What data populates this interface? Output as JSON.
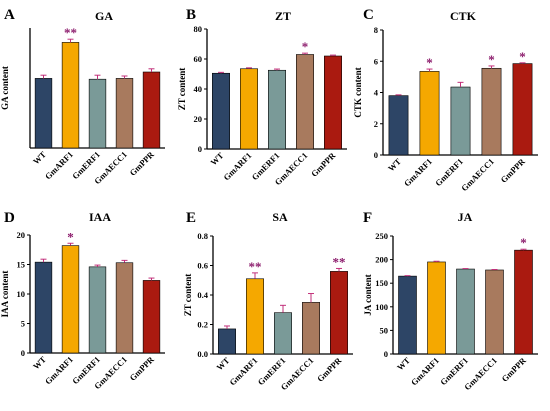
{
  "colors": {
    "bars": [
      "#2d4566",
      "#f5a800",
      "#7a9a98",
      "#a87a5e",
      "#aa1a10"
    ],
    "sig_mark": "#8b1a6b",
    "error_bar": "#c2307a"
  },
  "chart_data": [
    {
      "type": "bar",
      "letter": "A",
      "title": "GA",
      "ylabel": "GA content",
      "categories": [
        "WT",
        "GmARF1",
        "GmERF1",
        "GmAECC1",
        "GmPPR"
      ],
      "values": [
        8.7,
        13.2,
        8.6,
        8.7,
        9.5
      ],
      "errors": [
        0.4,
        0.4,
        0.5,
        0.3,
        0.4
      ],
      "significance": [
        "",
        "**",
        "",
        "",
        ""
      ],
      "ylim": [
        0,
        15
      ],
      "yticks": [],
      "yticks_labeled": false
    },
    {
      "type": "bar",
      "letter": "B",
      "title": "ZT",
      "ylabel": "ZT content",
      "categories": [
        "WT",
        "GmARF1",
        "GmERF1",
        "GmAECC1",
        "GmPPR"
      ],
      "values": [
        50.5,
        53.5,
        52.5,
        63.0,
        62.0
      ],
      "errors": [
        0.6,
        0.6,
        0.8,
        0.9,
        0.6
      ],
      "significance": [
        "",
        "",
        "",
        "*",
        ""
      ],
      "ylim": [
        0,
        80
      ],
      "yticks": [
        0,
        20,
        40,
        60,
        80
      ],
      "yticks_labeled": true
    },
    {
      "type": "bar",
      "letter": "C",
      "title": "CTK",
      "ylabel": "CTK content",
      "categories": [
        "WT",
        "GmARF1",
        "GmERF1",
        "GmAECC1",
        "GmPPR"
      ],
      "values": [
        3.8,
        5.35,
        4.35,
        5.55,
        5.85
      ],
      "errors": [
        0.05,
        0.15,
        0.3,
        0.15,
        0.05
      ],
      "significance": [
        "",
        "*",
        "",
        "*",
        "*"
      ],
      "ylim": [
        0,
        8
      ],
      "yticks": [
        0,
        2,
        4,
        6,
        8
      ],
      "yticks_labeled": true
    },
    {
      "type": "bar",
      "letter": "D",
      "title": "IAA",
      "ylabel": "IAA content",
      "categories": [
        "WT",
        "GmARF1",
        "GmERF1",
        "GmAECC1",
        "GmPPR"
      ],
      "values": [
        15.4,
        18.2,
        14.6,
        15.3,
        12.3
      ],
      "errors": [
        0.5,
        0.4,
        0.3,
        0.4,
        0.4
      ],
      "significance": [
        "",
        "*",
        "",
        "",
        ""
      ],
      "ylim": [
        0,
        20
      ],
      "yticks": [
        0,
        5,
        10,
        15,
        20
      ],
      "yticks_labeled": true
    },
    {
      "type": "bar",
      "letter": "E",
      "title": "SA",
      "ylabel": "ZT content",
      "categories": [
        "WT",
        "GmARF1",
        "GmERF1",
        "GmAECC1",
        "GmPPR"
      ],
      "values": [
        0.17,
        0.51,
        0.28,
        0.35,
        0.56
      ],
      "errors": [
        0.02,
        0.04,
        0.05,
        0.06,
        0.02
      ],
      "significance": [
        "",
        "**",
        "",
        "",
        "**"
      ],
      "ylim": [
        0,
        0.8
      ],
      "yticks": [
        0.0,
        0.2,
        0.4,
        0.6,
        0.8
      ],
      "yticks_labeled": true
    },
    {
      "type": "bar",
      "letter": "F",
      "title": "JA",
      "ylabel": "JA content",
      "categories": [
        "WT",
        "GmARF1",
        "GmERF1",
        "GmAECC1",
        "GmPPR"
      ],
      "values": [
        165,
        195,
        180,
        178,
        220
      ],
      "errors": [
        1,
        1.5,
        1,
        1,
        2
      ],
      "significance": [
        "",
        "",
        "",
        "",
        "*"
      ],
      "ylim": [
        0,
        250
      ],
      "yticks": [
        0,
        50,
        100,
        150,
        200,
        250
      ],
      "yticks_labeled": true
    }
  ]
}
